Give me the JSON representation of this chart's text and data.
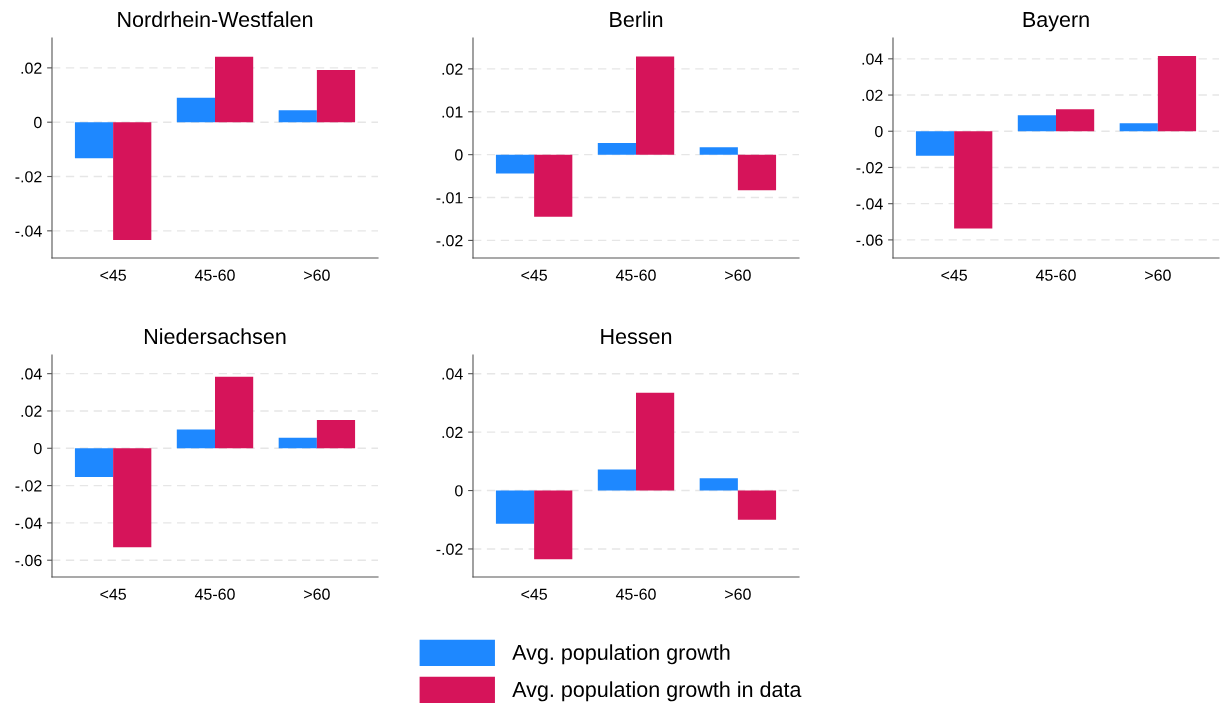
{
  "chart_data": [
    {
      "type": "bar",
      "title": "Nordrhein-Westfalen",
      "categories": [
        "<45",
        "45-60",
        ">60"
      ],
      "series": [
        {
          "name": "Avg. population growth",
          "color": "#1e88ff",
          "values": [
            -0.0133,
            0.009,
            0.0044
          ]
        },
        {
          "name": "Avg. population growth in data",
          "color": "#d6145a",
          "values": [
            -0.0434,
            0.0241,
            0.0192
          ]
        }
      ],
      "ylim": [
        -0.05,
        0.031
      ],
      "yticks": [
        {
          "value": -0.04,
          "label": "-.04"
        },
        {
          "value": -0.02,
          "label": "-.02"
        },
        0,
        {
          "value": 0.02,
          "label": ".02"
        }
      ],
      "grid": "y",
      "legend": "bottom"
    },
    {
      "type": "bar",
      "title": "Berlin",
      "categories": [
        "<45",
        "45-60",
        ">60"
      ],
      "series": [
        {
          "color": "#1e88ff",
          "values": [
            -0.0044,
            0.0027,
            0.0017
          ]
        },
        {
          "color": "#d6145a",
          "values": [
            -0.0145,
            0.0229,
            -0.0083
          ]
        }
      ],
      "ylim": [
        -0.0241,
        0.0272
      ],
      "yticks": [
        {
          "value": -0.02,
          "label": "-.02"
        },
        {
          "value": -0.01,
          "label": "-.01"
        },
        0,
        {
          "value": 0.01,
          "label": ".01"
        },
        {
          "value": 0.02,
          "label": ".02"
        }
      ],
      "grid": "y"
    },
    {
      "type": "bar",
      "title": "Bayern",
      "categories": [
        "<45",
        "45-60",
        ">60"
      ],
      "series": [
        {
          "color": "#1e88ff",
          "values": [
            -0.0135,
            0.0088,
            0.0044
          ]
        },
        {
          "color": "#d6145a",
          "values": [
            -0.0537,
            0.0121,
            0.0415
          ]
        }
      ],
      "ylim": [
        -0.07,
        0.0515
      ],
      "yticks": [
        {
          "value": -0.06,
          "label": "-.06"
        },
        {
          "value": -0.04,
          "label": "-.04"
        },
        {
          "value": -0.02,
          "label": "-.02"
        },
        0,
        {
          "value": 0.02,
          "label": ".02"
        },
        {
          "value": 0.04,
          "label": ".04"
        }
      ],
      "grid": "y"
    },
    {
      "type": "bar",
      "title": "Niedersachsen",
      "categories": [
        "<45",
        "45-60",
        ">60"
      ],
      "series": [
        {
          "color": "#1e88ff",
          "values": [
            -0.0154,
            0.01,
            0.0057
          ]
        },
        {
          "color": "#d6145a",
          "values": [
            -0.0531,
            0.0384,
            0.0151
          ]
        }
      ],
      "ylim": [
        -0.069,
        0.05
      ],
      "yticks": [
        {
          "value": -0.06,
          "label": "-.06"
        },
        {
          "value": -0.04,
          "label": "-.04"
        },
        {
          "value": -0.02,
          "label": "-.02"
        },
        0,
        {
          "value": 0.02,
          "label": ".02"
        },
        {
          "value": 0.04,
          "label": ".04"
        }
      ],
      "grid": "y"
    },
    {
      "type": "bar",
      "title": "Hessen",
      "categories": [
        "<45",
        "45-60",
        ">60"
      ],
      "series": [
        {
          "color": "#1e88ff",
          "values": [
            -0.0114,
            0.0072,
            0.0042
          ]
        },
        {
          "color": "#d6145a",
          "values": [
            -0.0235,
            0.0335,
            -0.01
          ]
        }
      ],
      "ylim": [
        -0.0296,
        0.0464
      ],
      "yticks": [
        {
          "value": -0.02,
          "label": "-.02"
        },
        0,
        {
          "value": 0.02,
          "label": ".02"
        },
        {
          "value": 0.04,
          "label": ".04"
        }
      ],
      "grid": "y"
    }
  ]
}
